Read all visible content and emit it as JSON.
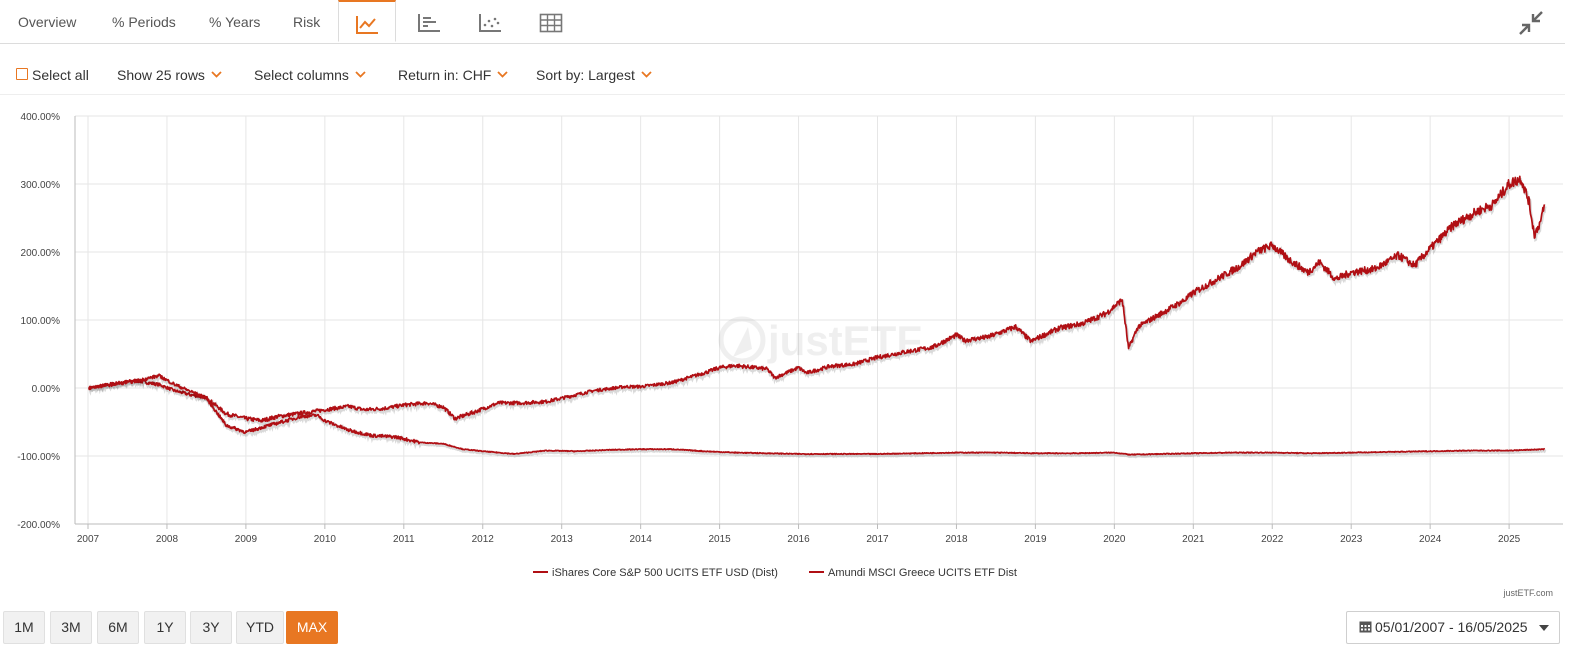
{
  "tabs": [
    {
      "label": "Overview"
    },
    {
      "label": "% Periods"
    },
    {
      "label": "% Years"
    },
    {
      "label": "Risk"
    }
  ],
  "icon_tabs": [
    {
      "icon": "line-chart-icon",
      "active": true
    },
    {
      "icon": "bar-chart-icon",
      "active": false
    },
    {
      "icon": "scatter-chart-icon",
      "active": false
    },
    {
      "icon": "table-grid-icon",
      "active": false
    }
  ],
  "toolbar": {
    "select_all": "Select all",
    "show_rows": "Show 25 rows",
    "select_columns": "Select columns",
    "return_in": "Return in: CHF",
    "sort_by": "Sort by: Largest"
  },
  "watermark": "justETF",
  "credit": "justETF.com",
  "periods": [
    {
      "label": "1M",
      "active": false
    },
    {
      "label": "3M",
      "active": false
    },
    {
      "label": "6M",
      "active": false
    },
    {
      "label": "1Y",
      "active": false
    },
    {
      "label": "3Y",
      "active": false
    },
    {
      "label": "YTD",
      "active": false
    },
    {
      "label": "MAX",
      "active": true
    }
  ],
  "date_range": "05/01/2007 - 16/05/2025",
  "colors": {
    "accent": "#e87722",
    "series": "#b00f14"
  },
  "chart_data": {
    "type": "line",
    "title": "",
    "xlabel": "",
    "ylabel": "",
    "ylim": [
      -200,
      400
    ],
    "xlim": [
      2007.0,
      2025.9
    ],
    "y_ticks": [
      {
        "value": 400,
        "label": "400.00%"
      },
      {
        "value": 300,
        "label": "300.00%"
      },
      {
        "value": 200,
        "label": "200.00%"
      },
      {
        "value": 100,
        "label": "100.00%"
      },
      {
        "value": 0,
        "label": "0.00%"
      },
      {
        "value": -100,
        "label": "-100.00%"
      },
      {
        "value": -200,
        "label": "-200.00%"
      }
    ],
    "x_ticks": [
      "2007",
      "2008",
      "2009",
      "2010",
      "2011",
      "2012",
      "2013",
      "2014",
      "2015",
      "2016",
      "2017",
      "2018",
      "2019",
      "2020",
      "2021",
      "2022",
      "2023",
      "2024",
      "2025"
    ],
    "grid": true,
    "legend_position": "bottom",
    "series": [
      {
        "name": "iShares Core S&P 500 UCITS ETF USD (Dist)",
        "points": [
          [
            2007.01,
            0
          ],
          [
            2007.3,
            6
          ],
          [
            2007.6,
            11
          ],
          [
            2007.9,
            5
          ],
          [
            2008.1,
            -4
          ],
          [
            2008.3,
            -10
          ],
          [
            2008.5,
            -14
          ],
          [
            2008.75,
            -38
          ],
          [
            2009.0,
            -45
          ],
          [
            2009.2,
            -48
          ],
          [
            2009.4,
            -42
          ],
          [
            2009.7,
            -37
          ],
          [
            2010.0,
            -32
          ],
          [
            2010.3,
            -27
          ],
          [
            2010.5,
            -32
          ],
          [
            2010.75,
            -30
          ],
          [
            2011.0,
            -25
          ],
          [
            2011.3,
            -22
          ],
          [
            2011.5,
            -28
          ],
          [
            2011.65,
            -45
          ],
          [
            2011.9,
            -35
          ],
          [
            2012.2,
            -22
          ],
          [
            2012.5,
            -22
          ],
          [
            2012.8,
            -20
          ],
          [
            2013.0,
            -15
          ],
          [
            2013.4,
            -4
          ],
          [
            2013.8,
            2
          ],
          [
            2014.0,
            2
          ],
          [
            2014.4,
            8
          ],
          [
            2014.8,
            22
          ],
          [
            2015.0,
            30
          ],
          [
            2015.2,
            33
          ],
          [
            2015.6,
            28
          ],
          [
            2015.7,
            15
          ],
          [
            2016.0,
            30
          ],
          [
            2016.1,
            22
          ],
          [
            2016.4,
            32
          ],
          [
            2016.7,
            35
          ],
          [
            2017.0,
            45
          ],
          [
            2017.3,
            52
          ],
          [
            2017.7,
            60
          ],
          [
            2018.0,
            78
          ],
          [
            2018.1,
            70
          ],
          [
            2018.4,
            75
          ],
          [
            2018.75,
            90
          ],
          [
            2018.95,
            68
          ],
          [
            2019.0,
            72
          ],
          [
            2019.3,
            88
          ],
          [
            2019.6,
            95
          ],
          [
            2019.9,
            110
          ],
          [
            2020.1,
            130
          ],
          [
            2020.18,
            58
          ],
          [
            2020.3,
            90
          ],
          [
            2020.6,
            110
          ],
          [
            2020.9,
            130
          ],
          [
            2021.0,
            140
          ],
          [
            2021.3,
            160
          ],
          [
            2021.6,
            180
          ],
          [
            2021.8,
            200
          ],
          [
            2022.0,
            210
          ],
          [
            2022.2,
            190
          ],
          [
            2022.45,
            170
          ],
          [
            2022.6,
            185
          ],
          [
            2022.8,
            160
          ],
          [
            2023.0,
            170
          ],
          [
            2023.3,
            175
          ],
          [
            2023.6,
            195
          ],
          [
            2023.8,
            180
          ],
          [
            2024.0,
            205
          ],
          [
            2024.3,
            240
          ],
          [
            2024.6,
            260
          ],
          [
            2024.8,
            270
          ],
          [
            2025.0,
            300
          ],
          [
            2025.15,
            308
          ],
          [
            2025.25,
            275
          ],
          [
            2025.32,
            225
          ],
          [
            2025.4,
            245
          ],
          [
            2025.45,
            270
          ]
        ]
      },
      {
        "name": "Amundi MSCI Greece UCITS ETF Dist",
        "points": [
          [
            2007.01,
            0
          ],
          [
            2007.3,
            5
          ],
          [
            2007.6,
            10
          ],
          [
            2007.9,
            18
          ],
          [
            2008.1,
            5
          ],
          [
            2008.3,
            -5
          ],
          [
            2008.5,
            -15
          ],
          [
            2008.75,
            -55
          ],
          [
            2009.0,
            -65
          ],
          [
            2009.2,
            -58
          ],
          [
            2009.45,
            -50
          ],
          [
            2009.7,
            -42
          ],
          [
            2009.9,
            -40
          ],
          [
            2010.0,
            -48
          ],
          [
            2010.3,
            -62
          ],
          [
            2010.6,
            -70
          ],
          [
            2010.9,
            -72
          ],
          [
            2011.2,
            -80
          ],
          [
            2011.5,
            -82
          ],
          [
            2011.75,
            -90
          ],
          [
            2012.0,
            -93
          ],
          [
            2012.4,
            -97
          ],
          [
            2012.8,
            -92
          ],
          [
            2013.2,
            -93
          ],
          [
            2013.6,
            -91
          ],
          [
            2014.0,
            -90
          ],
          [
            2014.4,
            -90
          ],
          [
            2014.8,
            -93
          ],
          [
            2015.2,
            -95
          ],
          [
            2015.6,
            -96
          ],
          [
            2016.0,
            -97
          ],
          [
            2016.5,
            -97
          ],
          [
            2017.0,
            -97
          ],
          [
            2017.5,
            -96
          ],
          [
            2018.0,
            -95
          ],
          [
            2018.5,
            -95
          ],
          [
            2019.0,
            -96
          ],
          [
            2019.5,
            -96
          ],
          [
            2020.0,
            -95
          ],
          [
            2020.2,
            -98
          ],
          [
            2020.6,
            -97
          ],
          [
            2021.0,
            -96
          ],
          [
            2021.5,
            -95
          ],
          [
            2022.0,
            -95
          ],
          [
            2022.5,
            -96
          ],
          [
            2023.0,
            -95
          ],
          [
            2023.5,
            -94
          ],
          [
            2024.0,
            -93
          ],
          [
            2024.5,
            -92
          ],
          [
            2025.0,
            -92
          ],
          [
            2025.45,
            -90
          ]
        ]
      }
    ]
  }
}
